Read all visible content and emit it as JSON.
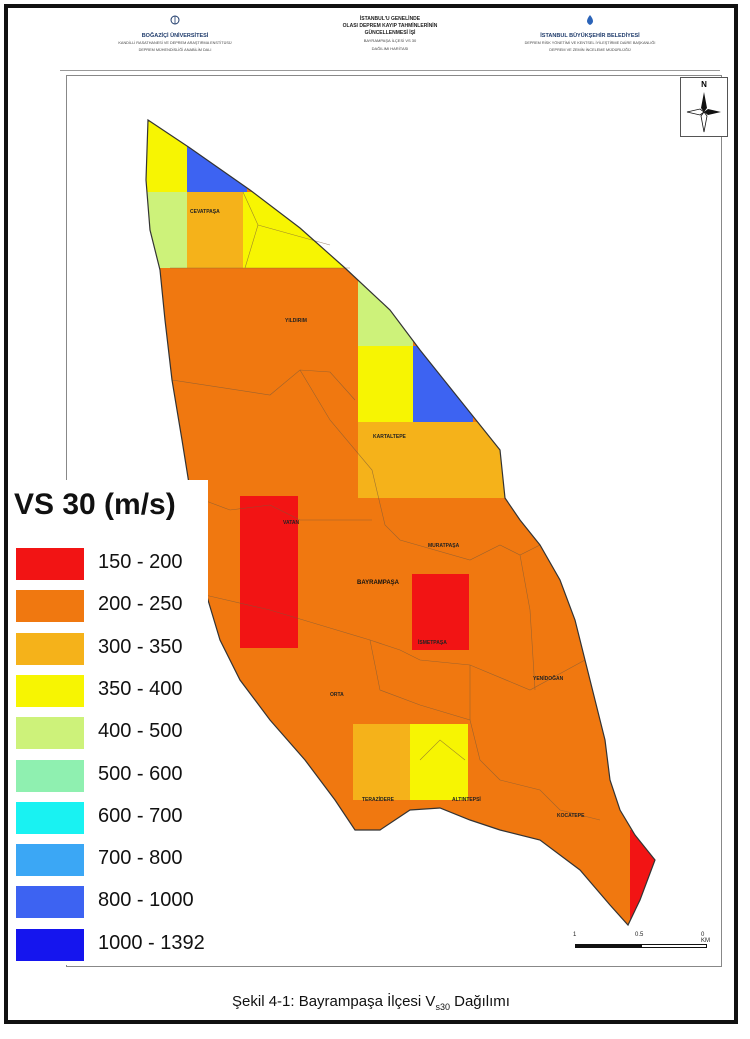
{
  "header": {
    "left": {
      "title": "BOĞAZİÇİ ÜNİVERSİTESİ",
      "line1": "KANDİLLİ RASATHANESİ VE DEPREM ARAŞTIRMA ENSTİTÜSÜ",
      "line2": "DEPREM MÜHENDİSLİĞİ ANABİLİM DALI"
    },
    "center": {
      "line1": "İSTANBUL'U GENELİNDE",
      "line2": "OLASI DEPREM KAYIP TAHMİNLERİNİN",
      "line3": "GÜNCELLENMESİ İŞİ",
      "line4": "BAYRAMPAŞA İLÇESİ VS 30",
      "line5": "DAĞILIMI HARİTASI"
    },
    "right": {
      "title": "İSTANBUL BÜYÜKŞEHİR BELEDİYESİ",
      "line1": "DEPREM RİSK YÖNETİMİ VE KENTSEL İYİLEŞTİRME DAİRE BAŞKANLIĞI",
      "line2": "DEPREM VE ZEMİN İNCELEME MÜDÜRLÜĞÜ"
    }
  },
  "north_arrow": {
    "label": "N"
  },
  "legend": {
    "title": "VS 30 (m/s)",
    "items": [
      {
        "label": "150 - 200",
        "color": "#f21414"
      },
      {
        "label": "200 - 250",
        "color": "#f07810"
      },
      {
        "label": "300 - 350",
        "color": "#f5b21a"
      },
      {
        "label": "350 - 400",
        "color": "#f7f502"
      },
      {
        "label": "400 - 500",
        "color": "#cdf27a"
      },
      {
        "label": "500 - 600",
        "color": "#8ff0b0"
      },
      {
        "label": "600 - 700",
        "color": "#19f2f2"
      },
      {
        "label": "700 - 800",
        "color": "#3ba7f5"
      },
      {
        "label": "800 - 1000",
        "color": "#3d63f2"
      },
      {
        "label": "1000 - 1392",
        "color": "#1515ee"
      }
    ]
  },
  "map_labels": {
    "district": "BAYRAMPAŞA",
    "neighborhoods": [
      "CEVATPAŞA",
      "YILDIRIM",
      "KARTALTEPE",
      "VATAN",
      "MURATPAŞA",
      "İSMETPAŞA",
      "ORTA",
      "TERAZİDERE",
      "ALTINTEPSİ",
      "YENİDOĞAN",
      "KOCATEPE"
    ]
  },
  "scale": {
    "ticks": [
      "1",
      "0.5",
      "0 KM"
    ]
  },
  "caption": {
    "prefix": "Şekil 4-1: Bayrampaşa İlçesi V",
    "sub": "s30",
    "suffix": " Dağılımı"
  }
}
